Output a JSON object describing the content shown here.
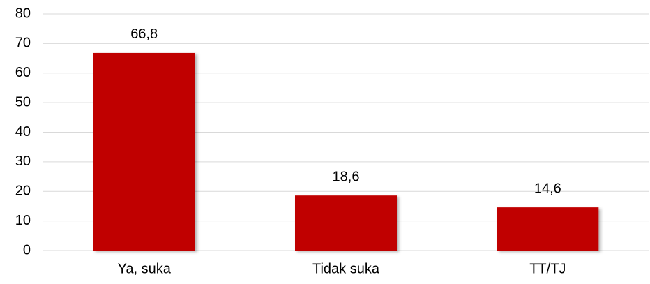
{
  "chart_data": {
    "type": "bar",
    "categories": [
      "Ya, suka",
      "Tidak suka",
      "TT/TJ"
    ],
    "values": [
      66.8,
      18.6,
      14.6
    ],
    "value_labels": [
      "66,8",
      "18,6",
      "14,6"
    ],
    "color": "#c00000",
    "ylim": [
      0,
      80
    ],
    "yticks": [
      0,
      10,
      20,
      30,
      40,
      50,
      60,
      70,
      80
    ],
    "grid": true
  }
}
